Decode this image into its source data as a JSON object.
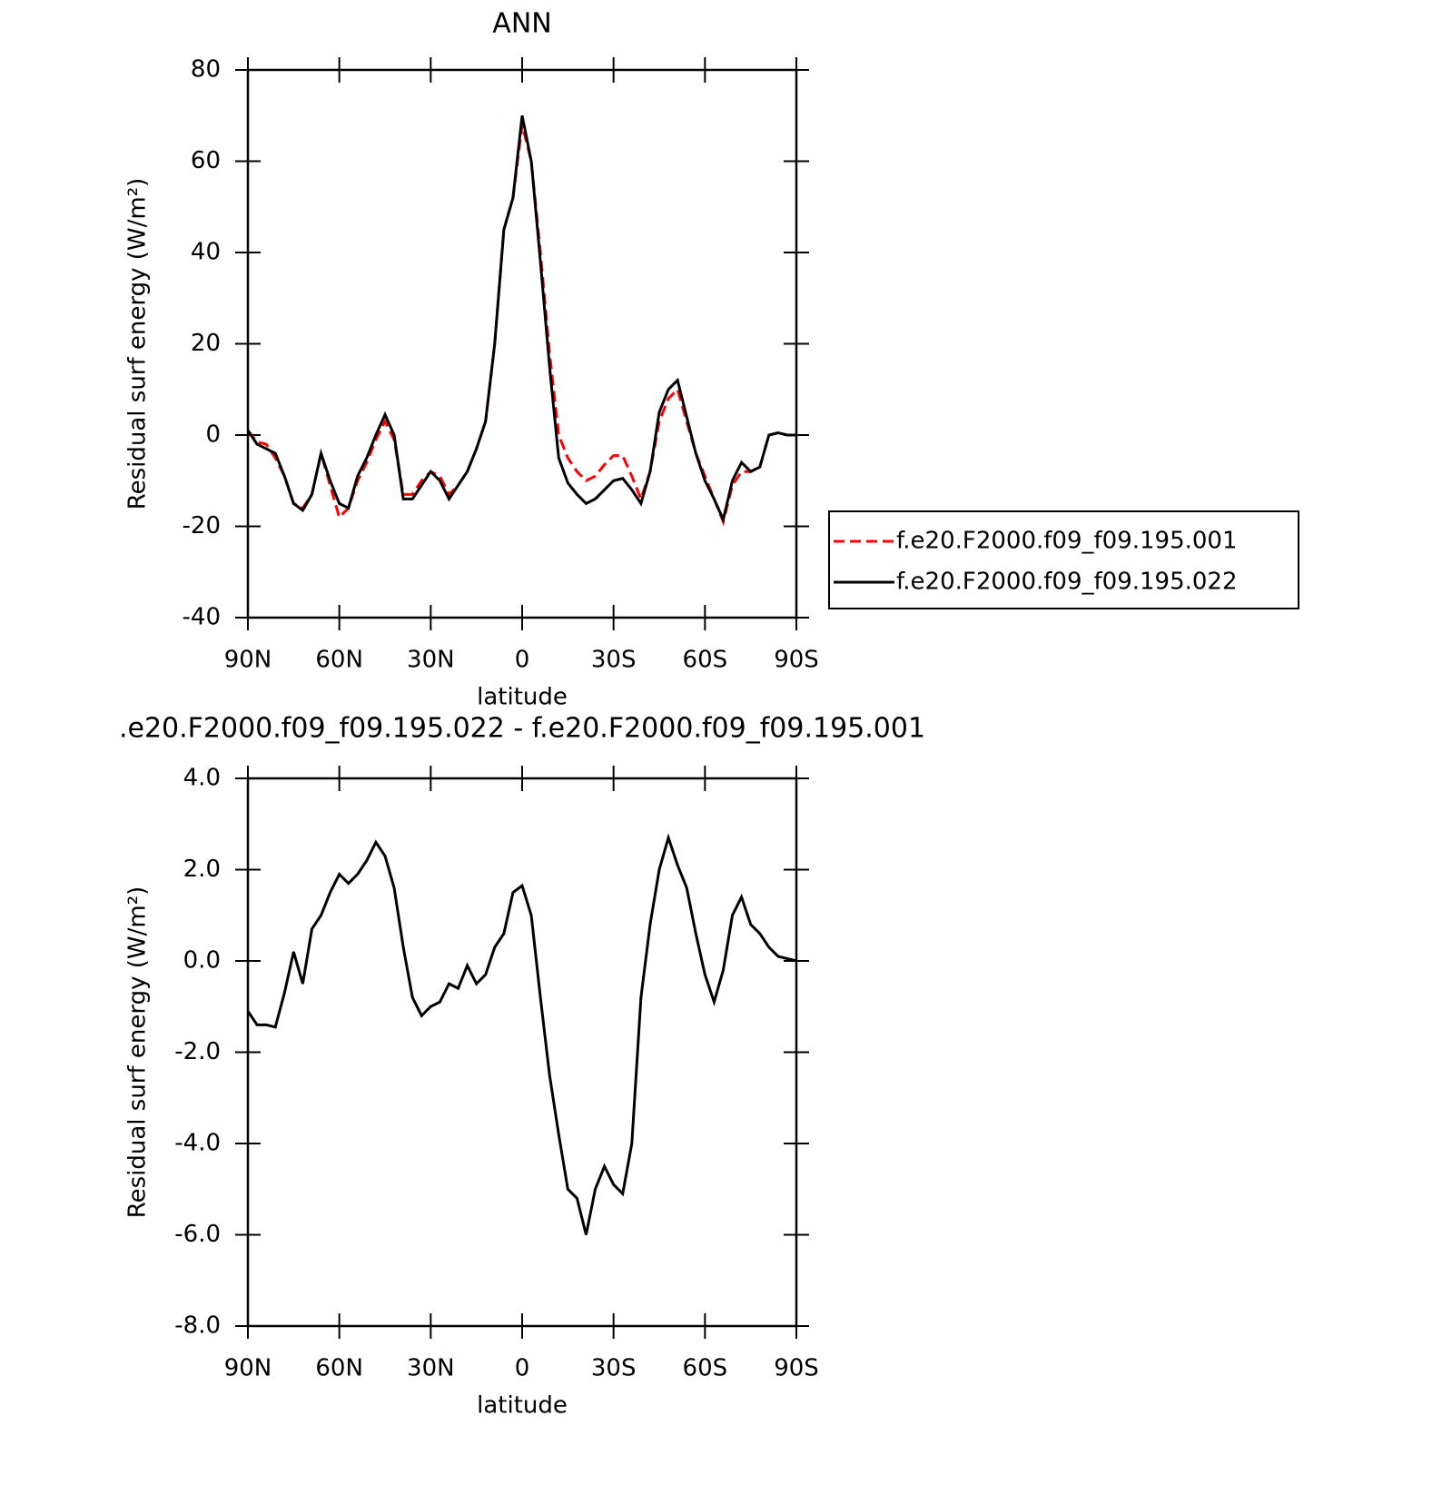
{
  "chart_data": [
    {
      "type": "line",
      "title": "ANN",
      "x_label": "latitude",
      "y_label": "Residual surf energy (W/m²)",
      "x": [
        90,
        87,
        84,
        81,
        78,
        75,
        72,
        69,
        66,
        63,
        60,
        57,
        54,
        51,
        48,
        45,
        42,
        39,
        36,
        33,
        30,
        27,
        24,
        21,
        18,
        15,
        12,
        9,
        6,
        3,
        0,
        -3,
        -6,
        -9,
        -12,
        -15,
        -18,
        -21,
        -24,
        -27,
        -30,
        -33,
        -36,
        -39,
        -42,
        -45,
        -48,
        -51,
        -54,
        -57,
        -60,
        -63,
        -66,
        -69,
        -72,
        -75,
        -78,
        -81,
        -84,
        -87,
        -90
      ],
      "xlim": [
        90,
        -90
      ],
      "xticks": [
        {
          "value": 90,
          "label": "90N"
        },
        {
          "value": 60,
          "label": "60N"
        },
        {
          "value": 30,
          "label": "30N"
        },
        0,
        {
          "value": -30,
          "label": "30S"
        },
        {
          "value": -60,
          "label": "60S"
        },
        {
          "value": -90,
          "label": "90S"
        }
      ],
      "ylim": [
        -40,
        80
      ],
      "yticks": [
        -40,
        -20,
        0,
        20,
        40,
        60,
        80
      ],
      "legend": "right",
      "series": [
        {
          "name": "f.e20.F2000.f09_f09.195.001",
          "color": "#ff0000",
          "line_style": "dashed",
          "values": [
            1,
            -1.5,
            -2,
            -5,
            -9,
            -15,
            -16,
            -13,
            -4,
            -11,
            -18,
            -16,
            -10,
            -6,
            -1,
            3,
            -1,
            -13,
            -13,
            -10,
            -8,
            -9,
            -13,
            -11,
            -8,
            -3,
            3,
            20,
            45,
            52,
            68,
            60,
            40,
            18,
            0,
            -5,
            -8,
            -10,
            -9,
            -6.5,
            -4.5,
            -4.5,
            -9,
            -14,
            -8,
            3,
            8,
            10,
            3,
            -4,
            -9,
            -14,
            -19,
            -11,
            -8,
            -8,
            -7,
            0,
            0.5,
            0,
            0
          ]
        },
        {
          "name": "f.e20.F2000.f09_f09.195.022",
          "color": "#000000",
          "line_style": "solid",
          "values": [
            1,
            -2,
            -3,
            -4,
            -9,
            -15,
            -16.5,
            -13,
            -4,
            -10,
            -15,
            -16,
            -9,
            -5,
            0,
            4.5,
            0,
            -14,
            -14,
            -11,
            -8,
            -10,
            -14,
            -11,
            -8,
            -3,
            3,
            20,
            45,
            52,
            70,
            60,
            38,
            15,
            -5,
            -10.5,
            -13,
            -15,
            -14,
            -12,
            -10,
            -9.5,
            -12,
            -15,
            -8,
            5,
            10,
            12,
            4,
            -4,
            -10,
            -14,
            -18.5,
            -10,
            -6,
            -8,
            -7,
            0,
            0.5,
            0,
            0
          ]
        }
      ]
    },
    {
      "type": "line",
      "title": ".e20.F2000.f09_f09.195.022 - f.e20.F2000.f09_f09.195.001",
      "x_label": "latitude",
      "y_label": "Residual surf energy (W/m²)",
      "x": [
        90,
        87,
        84,
        81,
        78,
        75,
        72,
        69,
        66,
        63,
        60,
        57,
        54,
        51,
        48,
        45,
        42,
        39,
        36,
        33,
        30,
        27,
        24,
        21,
        18,
        15,
        12,
        9,
        6,
        3,
        0,
        -3,
        -6,
        -9,
        -12,
        -15,
        -18,
        -21,
        -24,
        -27,
        -30,
        -33,
        -36,
        -39,
        -42,
        -45,
        -48,
        -51,
        -54,
        -57,
        -60,
        -63,
        -66,
        -69,
        -72,
        -75,
        -78,
        -81,
        -84,
        -87,
        -90
      ],
      "xlim": [
        90,
        -90
      ],
      "xticks": [
        {
          "value": 90,
          "label": "90N"
        },
        {
          "value": 60,
          "label": "60N"
        },
        {
          "value": 30,
          "label": "30N"
        },
        0,
        {
          "value": -30,
          "label": "30S"
        },
        {
          "value": -60,
          "label": "60S"
        },
        {
          "value": -90,
          "label": "90S"
        }
      ],
      "ylim": [
        -8,
        4
      ],
      "yticks": [
        {
          "value": -8,
          "label": "-8.0"
        },
        {
          "value": -6,
          "label": "-6.0"
        },
        {
          "value": -4,
          "label": "-4.0"
        },
        {
          "value": -2,
          "label": "-2.0"
        },
        {
          "value": 0,
          "label": "0.0"
        },
        {
          "value": 2,
          "label": "2.0"
        },
        {
          "value": 4,
          "label": "4.0"
        }
      ],
      "series": [
        {
          "color": "#000000",
          "line_style": "solid",
          "values": [
            -1.1,
            -1.4,
            -1.4,
            -1.45,
            -0.7,
            0.2,
            -0.5,
            0.7,
            1.0,
            1.5,
            1.9,
            1.7,
            1.9,
            2.2,
            2.6,
            2.3,
            1.6,
            0.3,
            -0.8,
            -1.2,
            -1.0,
            -0.9,
            -0.5,
            -0.6,
            -0.1,
            -0.5,
            -0.3,
            0.3,
            0.6,
            1.5,
            1.65,
            1.0,
            -0.8,
            -2.5,
            -3.8,
            -5.0,
            -5.2,
            -6.0,
            -5.0,
            -4.5,
            -4.9,
            -5.1,
            -4.0,
            -0.8,
            0.8,
            2.0,
            2.7,
            2.1,
            1.6,
            0.6,
            -0.3,
            -0.9,
            -0.2,
            1.0,
            1.4,
            0.8,
            0.6,
            0.3,
            0.1,
            0.05,
            0
          ]
        }
      ]
    }
  ]
}
